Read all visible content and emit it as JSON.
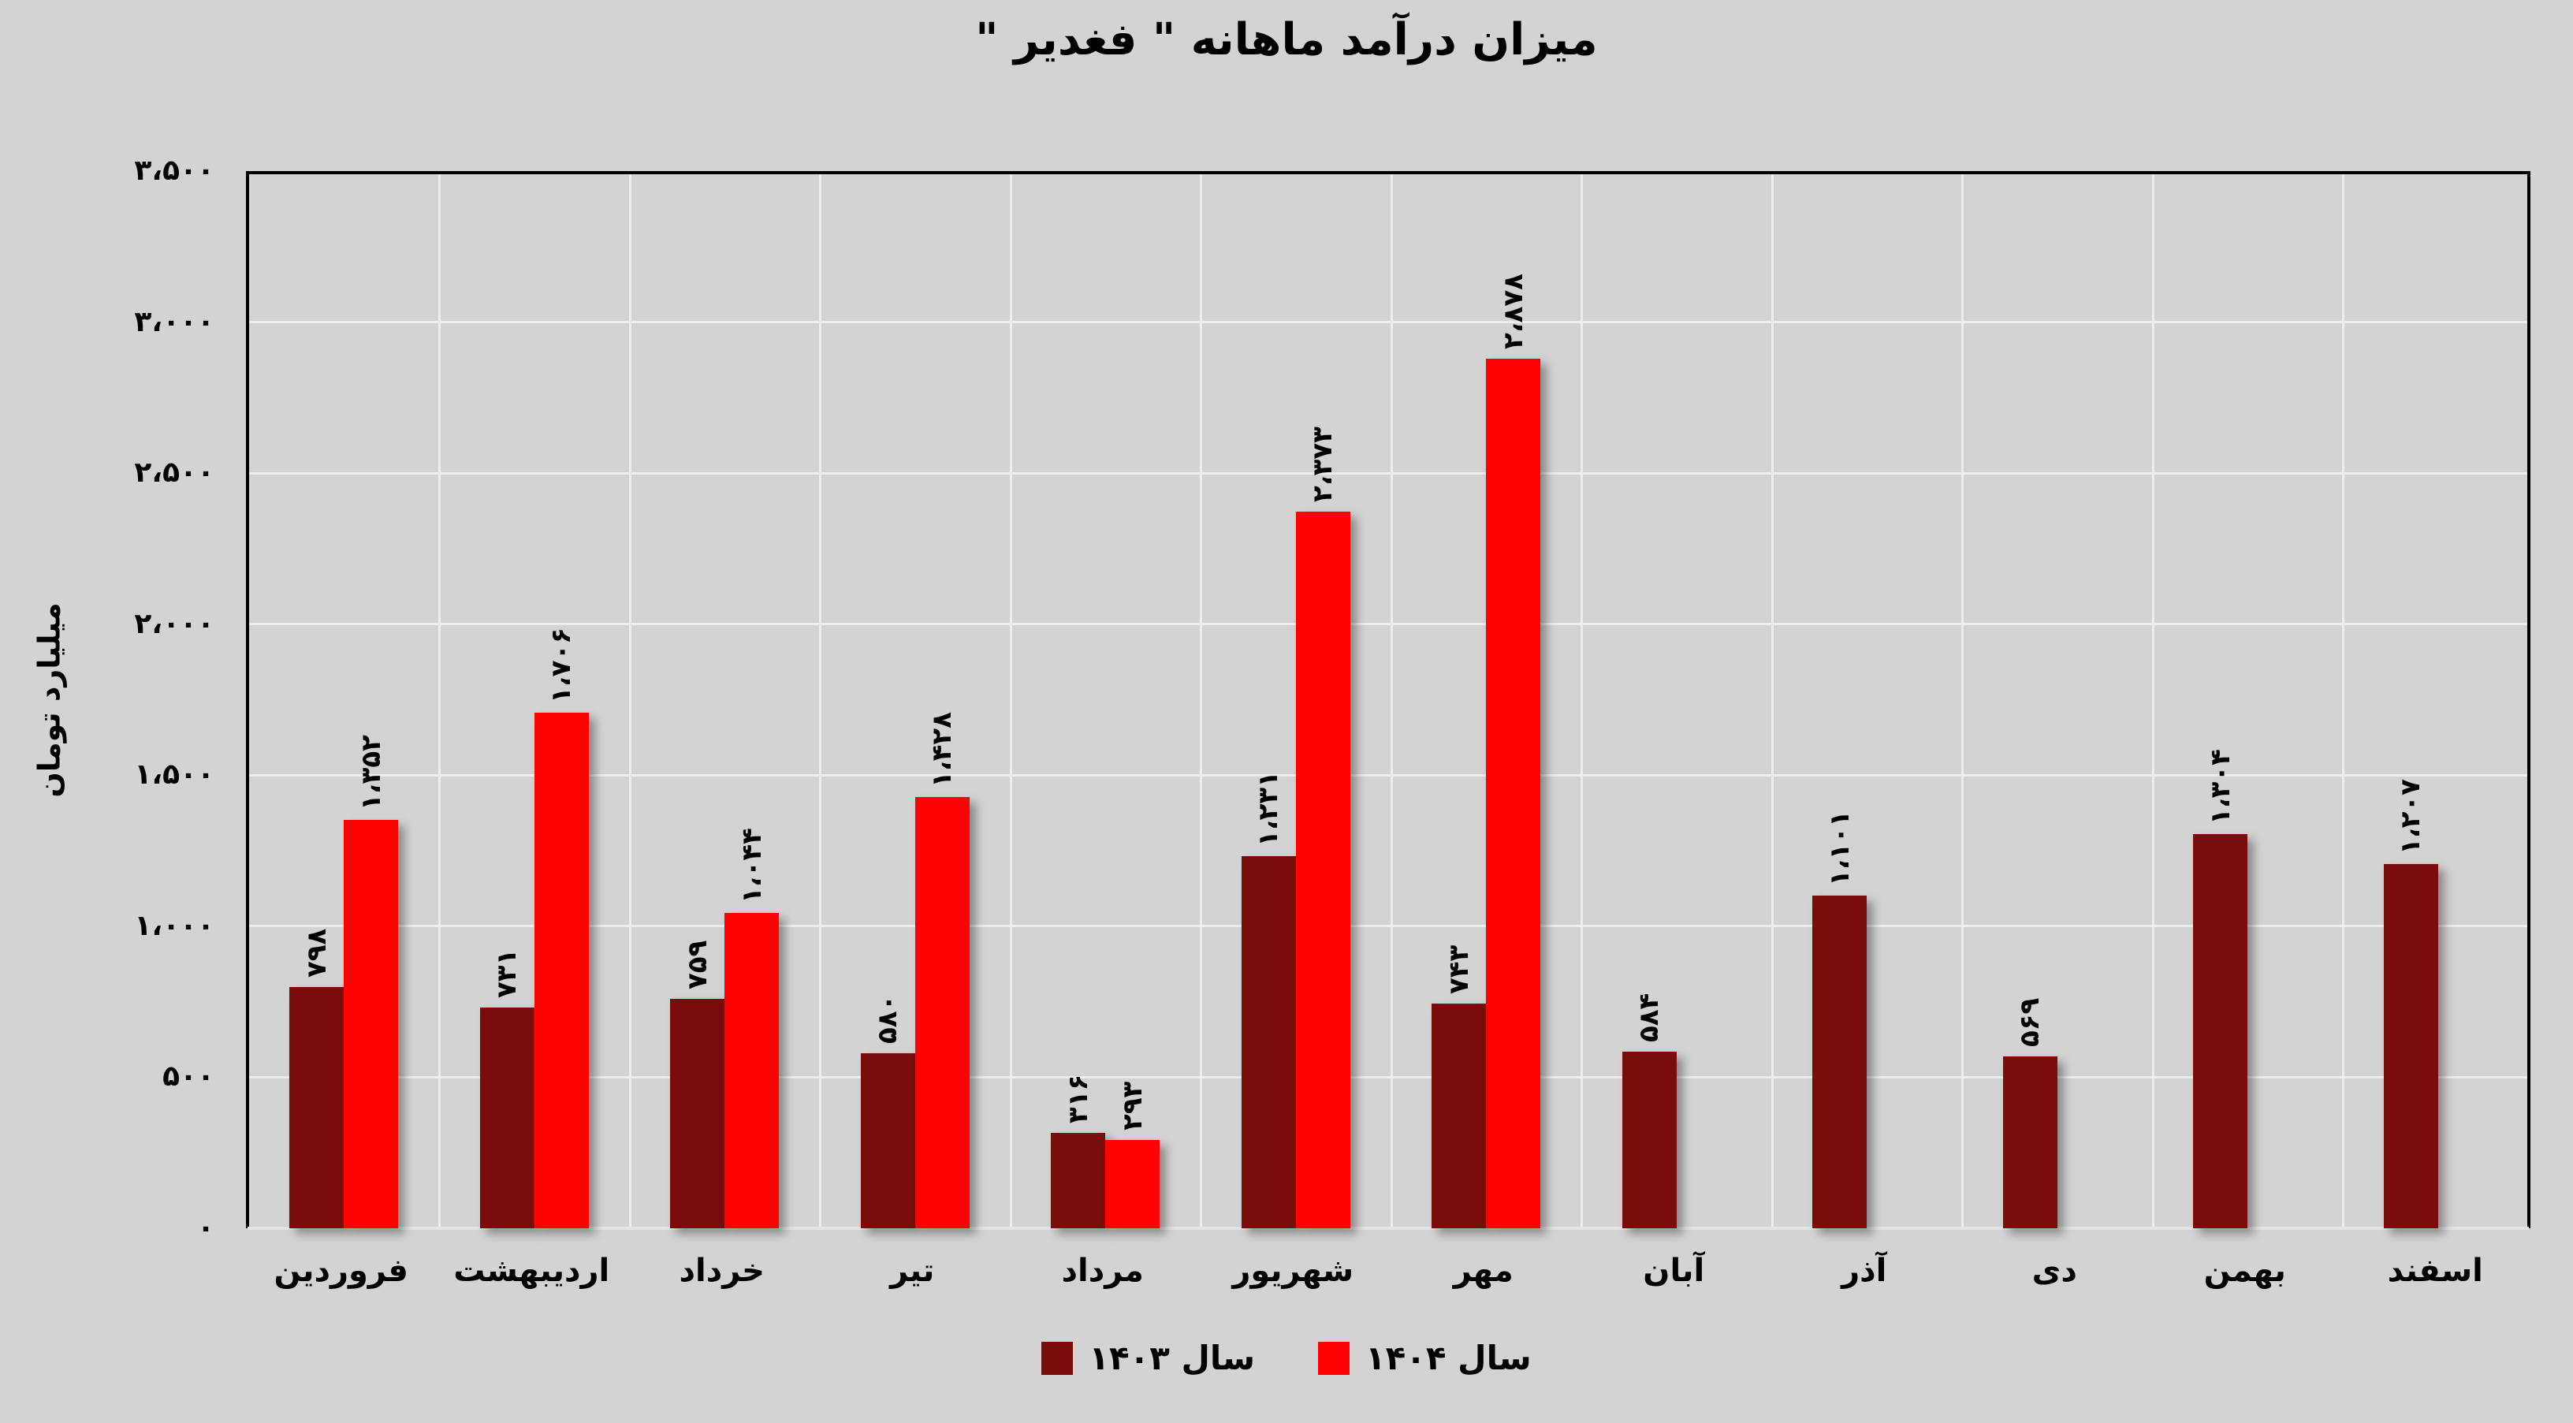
{
  "title": "میزان درآمد ماهانه \" فغدیر \"",
  "colors": {
    "background": "#d3d3d3",
    "series_1403": "#7a0c0c",
    "series_1404": "#fe0101",
    "gridline": "#ededed",
    "axis_border": "#000000"
  },
  "y_axis": {
    "title": "میلیارد تومان",
    "ticks": [
      {
        "value": 0,
        "label": "۰"
      },
      {
        "value": 500,
        "label": "۵۰۰"
      },
      {
        "value": 1000,
        "label": "۱،۰۰۰"
      },
      {
        "value": 1500,
        "label": "۱،۵۰۰"
      },
      {
        "value": 2000,
        "label": "۲،۰۰۰"
      },
      {
        "value": 2500,
        "label": "۲،۵۰۰"
      },
      {
        "value": 3000,
        "label": "۳،۰۰۰"
      },
      {
        "value": 3500,
        "label": "۳،۵۰۰"
      }
    ]
  },
  "legend": [
    {
      "name": "سال ۱۴۰۳",
      "color": "#7a0c0c"
    },
    {
      "name": "سال ۱۴۰۴",
      "color": "#fe0101"
    }
  ],
  "chart_data": {
    "type": "bar",
    "title": "میزان درآمد ماهانه \" فغدیر \"",
    "ylabel": "میلیارد تومان",
    "xlabel": "",
    "ylim": [
      0,
      3500
    ],
    "grid": true,
    "legend_position": "bottom",
    "categories": [
      "فروردین",
      "اردیبهشت",
      "خرداد",
      "تیر",
      "مرداد",
      "شهریور",
      "مهر",
      "آبان",
      "آذر",
      "دی",
      "بهمن",
      "اسفند"
    ],
    "series": [
      {
        "name": "سال ۱۴۰۳",
        "color": "#7a0c0c",
        "values": [
          798,
          731,
          759,
          580,
          316,
          1231,
          743,
          584,
          1101,
          569,
          1304,
          1207
        ],
        "labels": [
          "۷۹۸",
          "۷۳۱",
          "۷۵۹",
          "۵۸۰",
          "۳۱۶",
          "۱،۲۳۱",
          "۷۴۳",
          "۵۸۴",
          "۱،۱۰۱",
          "۵۶۹",
          "۱،۳۰۴",
          "۱،۲۰۷"
        ]
      },
      {
        "name": "سال ۱۴۰۴",
        "color": "#fe0101",
        "values": [
          1352,
          1706,
          1044,
          1428,
          293,
          2373,
          2878,
          null,
          null,
          null,
          null,
          null
        ],
        "labels": [
          "۱،۳۵۲",
          "۱،۷۰۶",
          "۱،۰۴۴",
          "۱،۴۲۸",
          "۲۹۳",
          "۲،۳۷۳",
          "۲،۸۷۸",
          null,
          null,
          null,
          null,
          null
        ]
      }
    ]
  }
}
